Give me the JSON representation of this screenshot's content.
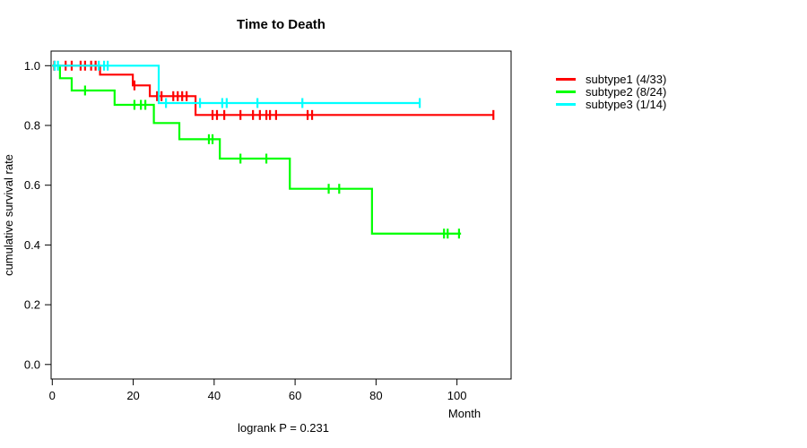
{
  "title": "Time to Death",
  "chart_data": {
    "type": "line",
    "subtype": "kaplan-meier-step",
    "title": "Time to Death",
    "xlabel": "Month",
    "ylabel": "cumulative survival rate",
    "annotation": "logrank P = 0.231",
    "x_ticks": [
      0,
      20,
      40,
      60,
      80,
      100
    ],
    "y_ticks": [
      0.0,
      0.2,
      0.4,
      0.6,
      0.8,
      1.0
    ],
    "xlim": [
      0,
      113
    ],
    "ylim": [
      0,
      1.05
    ],
    "grid": false,
    "legend_position": "right-outside",
    "series": [
      {
        "id": "subtype1",
        "name": "subtype1 (4/33)",
        "color": "#ff0000",
        "n": 33,
        "events": 4,
        "drops": [
          [
            11.8,
            0.97
          ],
          [
            19.9,
            0.934
          ],
          [
            24.1,
            0.898
          ],
          [
            35.4,
            0.835
          ]
        ],
        "end_time": 109,
        "censors": [
          [
            0.5,
            1.0
          ],
          [
            3.3,
            1.0
          ],
          [
            4.8,
            1.0
          ],
          [
            7.0,
            1.0
          ],
          [
            8.1,
            1.0
          ],
          [
            9.6,
            1.0
          ],
          [
            10.7,
            1.0
          ],
          [
            20.3,
            0.934
          ],
          [
            25.9,
            0.898
          ],
          [
            27.0,
            0.898
          ],
          [
            29.9,
            0.898
          ],
          [
            31.0,
            0.898
          ],
          [
            32.1,
            0.898
          ],
          [
            33.2,
            0.898
          ],
          [
            39.6,
            0.835
          ],
          [
            40.7,
            0.835
          ],
          [
            42.5,
            0.835
          ],
          [
            46.5,
            0.835
          ],
          [
            49.6,
            0.835
          ],
          [
            51.3,
            0.835
          ],
          [
            52.9,
            0.835
          ],
          [
            53.8,
            0.835
          ],
          [
            55.3,
            0.835
          ],
          [
            63.1,
            0.835
          ],
          [
            64.2,
            0.835
          ],
          [
            109,
            0.835
          ]
        ]
      },
      {
        "id": "subtype2",
        "name": "subtype2 (8/24)",
        "color": "#00ff00",
        "n": 24,
        "events": 8,
        "drops": [
          [
            1.9,
            0.958
          ],
          [
            4.8,
            0.917
          ],
          [
            15.4,
            0.869
          ],
          [
            25.1,
            0.808
          ],
          [
            31.4,
            0.754
          ],
          [
            41.4,
            0.689
          ],
          [
            58.7,
            0.588
          ],
          [
            79.0,
            0.438
          ]
        ],
        "end_time": 101,
        "censors": [
          [
            8.1,
            0.917
          ],
          [
            20.3,
            0.869
          ],
          [
            21.9,
            0.869
          ],
          [
            23.0,
            0.869
          ],
          [
            38.7,
            0.754
          ],
          [
            39.6,
            0.754
          ],
          [
            46.5,
            0.689
          ],
          [
            52.9,
            0.689
          ],
          [
            68.3,
            0.588
          ],
          [
            70.9,
            0.588
          ],
          [
            96.8,
            0.438
          ],
          [
            97.7,
            0.438
          ],
          [
            100.5,
            0.438
          ]
        ]
      },
      {
        "id": "subtype3",
        "name": "subtype3 (1/14)",
        "color": "#00ffff",
        "n": 14,
        "events": 1,
        "drops": [
          [
            26.3,
            0.875
          ]
        ],
        "end_time": 90.8,
        "censors": [
          [
            0.6,
            1.0
          ],
          [
            1.4,
            1.0
          ],
          [
            11.5,
            1.0
          ],
          [
            12.8,
            1.0
          ],
          [
            13.7,
            1.0
          ],
          [
            28.1,
            0.875
          ],
          [
            36.5,
            0.875
          ],
          [
            42.0,
            0.875
          ],
          [
            43.1,
            0.875
          ],
          [
            50.7,
            0.875
          ],
          [
            61.8,
            0.875
          ],
          [
            90.8,
            0.875
          ]
        ]
      }
    ]
  }
}
